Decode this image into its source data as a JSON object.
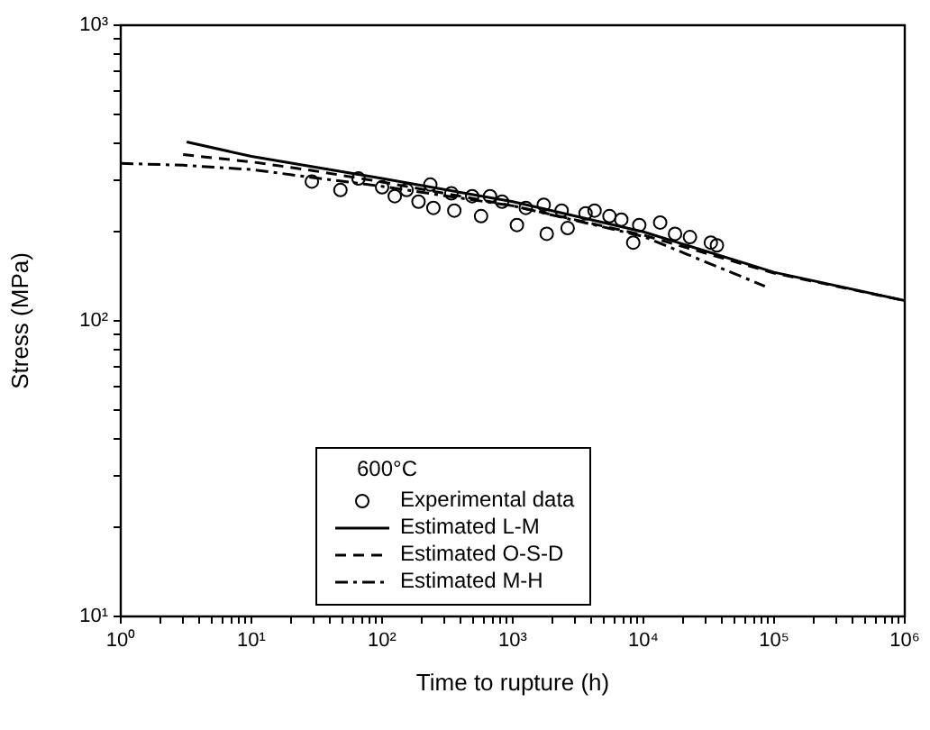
{
  "chart_data": {
    "type": "line",
    "xlabel": "Time to rupture (h)",
    "ylabel": "Stress (MPa)",
    "legend_title": "600°C",
    "log": "xy",
    "grid": false,
    "legend": "bottom",
    "xlim": [
      1,
      1000000
    ],
    "ylim": [
      10,
      1000
    ],
    "xticks": [
      {
        "value": 1,
        "label": "10⁰"
      },
      {
        "value": 2,
        "label": null
      },
      {
        "value": 3,
        "label": null
      },
      {
        "value": 4,
        "label": null
      },
      {
        "value": 5,
        "label": null
      },
      {
        "value": 6,
        "label": null
      },
      {
        "value": 7,
        "label": null
      },
      {
        "value": 8,
        "label": null
      },
      {
        "value": 9,
        "label": null
      },
      {
        "value": 10,
        "label": "10¹"
      },
      {
        "value": 20,
        "label": null
      },
      {
        "value": 30,
        "label": null
      },
      {
        "value": 40,
        "label": null
      },
      {
        "value": 50,
        "label": null
      },
      {
        "value": 60,
        "label": null
      },
      {
        "value": 70,
        "label": null
      },
      {
        "value": 80,
        "label": null
      },
      {
        "value": 90,
        "label": null
      },
      {
        "value": 100,
        "label": "10²"
      },
      {
        "value": 200,
        "label": null
      },
      {
        "value": 300,
        "label": null
      },
      {
        "value": 400,
        "label": null
      },
      {
        "value": 500,
        "label": null
      },
      {
        "value": 600,
        "label": null
      },
      {
        "value": 700,
        "label": null
      },
      {
        "value": 800,
        "label": null
      },
      {
        "value": 900,
        "label": null
      },
      {
        "value": 1000,
        "label": "10³"
      },
      {
        "value": 2000,
        "label": null
      },
      {
        "value": 3000,
        "label": null
      },
      {
        "value": 4000,
        "label": null
      },
      {
        "value": 5000,
        "label": null
      },
      {
        "value": 6000,
        "label": null
      },
      {
        "value": 7000,
        "label": null
      },
      {
        "value": 8000,
        "label": null
      },
      {
        "value": 9000,
        "label": null
      },
      {
        "value": 10000,
        "label": "10⁴"
      },
      {
        "value": 20000,
        "label": null
      },
      {
        "value": 30000,
        "label": null
      },
      {
        "value": 40000,
        "label": null
      },
      {
        "value": 50000,
        "label": null
      },
      {
        "value": 60000,
        "label": null
      },
      {
        "value": 70000,
        "label": null
      },
      {
        "value": 80000,
        "label": null
      },
      {
        "value": 90000,
        "label": null
      },
      {
        "value": 100000,
        "label": "10⁵"
      },
      {
        "value": 200000,
        "label": null
      },
      {
        "value": 300000,
        "label": null
      },
      {
        "value": 400000,
        "label": null
      },
      {
        "value": 500000,
        "label": null
      },
      {
        "value": 600000,
        "label": null
      },
      {
        "value": 700000,
        "label": null
      },
      {
        "value": 800000,
        "label": null
      },
      {
        "value": 900000,
        "label": null
      },
      {
        "value": 1000000,
        "label": "10⁶"
      }
    ],
    "yticks": [
      {
        "value": 10,
        "label": "10¹"
      },
      {
        "value": 20,
        "label": null
      },
      {
        "value": 30,
        "label": null
      },
      {
        "value": 40,
        "label": null
      },
      {
        "value": 50,
        "label": null
      },
      {
        "value": 60,
        "label": null
      },
      {
        "value": 70,
        "label": null
      },
      {
        "value": 80,
        "label": null
      },
      {
        "value": 90,
        "label": null
      },
      {
        "value": 100,
        "label": "10²"
      },
      {
        "value": 200,
        "label": null
      },
      {
        "value": 300,
        "label": null
      },
      {
        "value": 400,
        "label": null
      },
      {
        "value": 500,
        "label": null
      },
      {
        "value": 600,
        "label": null
      },
      {
        "value": 700,
        "label": null
      },
      {
        "value": 800,
        "label": null
      },
      {
        "value": 900,
        "label": null
      },
      {
        "value": 1000,
        "label": "10³"
      }
    ],
    "series": [
      {
        "name": "Experimental data",
        "type": "scatter",
        "marker": "circle",
        "color": "#000000",
        "x": [
          29,
          48,
          66,
          100,
          125,
          154,
          190,
          234,
          247,
          339,
          357,
          489,
          572,
          670,
          828,
          1076,
          1259,
          1726,
          1820,
          2366,
          2630,
          3606,
          4227,
          5495,
          6776,
          8356,
          9290,
          13430,
          17460,
          22700,
          32800,
          36500
        ],
        "values": [
          296,
          277,
          303,
          283,
          264,
          277,
          253,
          289,
          241,
          270,
          236,
          264,
          226,
          264,
          253,
          211,
          241,
          247,
          197,
          236,
          206,
          231,
          236,
          226,
          220,
          184,
          211,
          215,
          197,
          192,
          184,
          180
        ]
      },
      {
        "name": "Estimated L-M",
        "type": "line",
        "marker": "none",
        "line_style": "solid",
        "color": "#000000",
        "x": [
          3.2,
          10,
          100,
          1000,
          10000,
          100000,
          1000000
        ],
        "values": [
          403,
          360,
          303,
          253,
          200,
          146,
          117
        ]
      },
      {
        "name": "Estimated O-S-D",
        "type": "line",
        "marker": "none",
        "line_style": "dashed",
        "color": "#000000",
        "x": [
          3,
          10,
          30,
          100,
          1000,
          10000,
          100000,
          1000000
        ],
        "values": [
          365,
          345,
          322,
          295,
          245,
          195,
          145,
          117
        ]
      },
      {
        "name": "Estimated M-H",
        "type": "line",
        "marker": "none",
        "line_style": "dashdot",
        "color": "#000000",
        "x": [
          1,
          3,
          10,
          30,
          100,
          1000,
          10000,
          85000
        ],
        "values": [
          341,
          336,
          325,
          305,
          285,
          245,
          193,
          131
        ]
      }
    ]
  }
}
